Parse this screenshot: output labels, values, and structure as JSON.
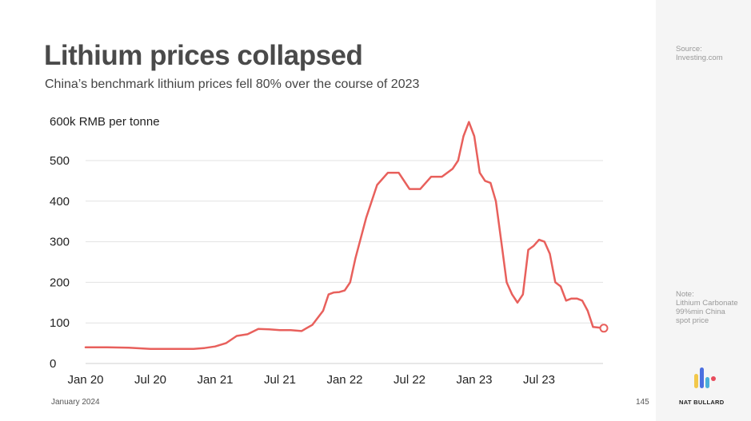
{
  "title": "Lithium prices collapsed",
  "subtitle": "China’s benchmark lithium prices fell 80% over the course of 2023",
  "footer": {
    "date": "January 2024",
    "page": "145"
  },
  "side": {
    "source_label": "Source:",
    "source_value": "Investing.com",
    "note_label": "Note:",
    "note_text": "Lithium Carbonate 99%min China spot price",
    "brand": "NAT BULLARD"
  },
  "colors": {
    "line": "#e8605c",
    "grid": "#e2e2e2",
    "side_bg": "#f5f5f5"
  },
  "chart_data": {
    "type": "line",
    "ylabel_unit": "600k RMB per tonne",
    "ylim": [
      0,
      600
    ],
    "yticks": [
      0,
      100,
      200,
      300,
      400,
      500
    ],
    "ytick_labels": [
      "0",
      "100",
      "200",
      "300",
      "400",
      "500"
    ],
    "xticks": [
      "Jan 20",
      "Jul 20",
      "Jan 21",
      "Jul 21",
      "Jan 22",
      "Jul 22",
      "Jan 23",
      "Jul 23"
    ],
    "grid": true,
    "series": [
      {
        "x": [
          0,
          2,
          4,
          6,
          8,
          10,
          11,
          12,
          13,
          14,
          15,
          16,
          17,
          18,
          19,
          20,
          21,
          22,
          22.5,
          23,
          23.5,
          24,
          24.5,
          25,
          26,
          27,
          28,
          29,
          30,
          31,
          32,
          33,
          34,
          34.5,
          35,
          35.5,
          36,
          36.5,
          37,
          37.5,
          38,
          38.5,
          39,
          39.5,
          40,
          40.5,
          41,
          41.5,
          42,
          42.5,
          43,
          43.5,
          44,
          44.5,
          45,
          45.5,
          46,
          46.5,
          47,
          48
        ],
        "values": [
          40,
          40,
          39,
          36,
          36,
          36,
          38,
          42,
          50,
          68,
          72,
          85,
          84,
          82,
          82,
          80,
          95,
          130,
          170,
          175,
          176,
          180,
          200,
          260,
          360,
          440,
          470,
          470,
          430,
          430,
          460,
          460,
          480,
          500,
          560,
          595,
          560,
          470,
          450,
          445,
          400,
          300,
          200,
          170,
          150,
          170,
          280,
          290,
          305,
          300,
          270,
          200,
          190,
          155,
          160,
          160,
          155,
          130,
          90,
          87
        ]
      }
    ],
    "end_marker": true
  }
}
